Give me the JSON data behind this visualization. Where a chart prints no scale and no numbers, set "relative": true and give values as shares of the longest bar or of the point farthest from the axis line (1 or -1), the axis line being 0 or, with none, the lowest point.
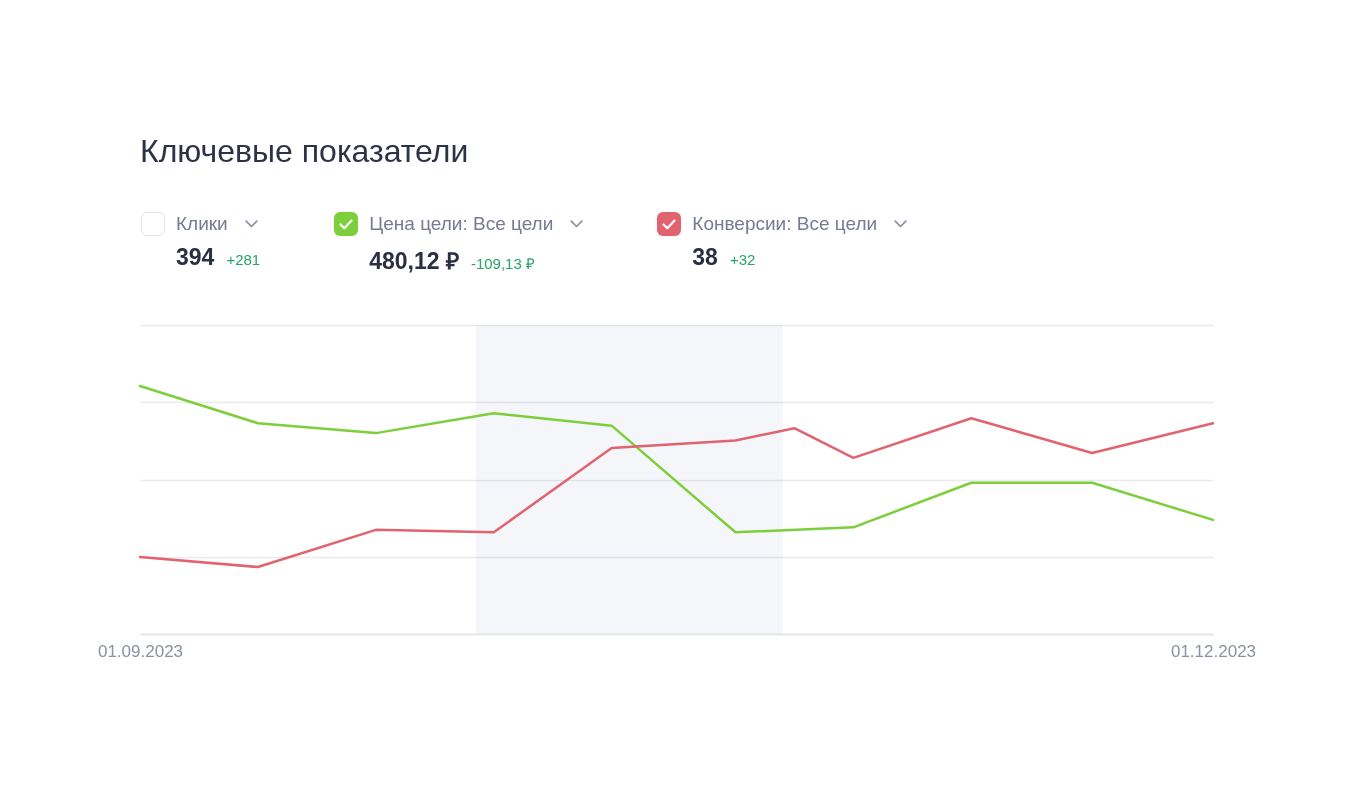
{
  "chart_data": {
    "type": "line",
    "title": "Ключевые показатели",
    "x": [
      "2023-09-01",
      "2023-09-11",
      "2023-09-21",
      "2023-10-01",
      "2023-10-11",
      "2023-10-21T12:00",
      "2023-10-31T12:00",
      "2023-11-10T12:00",
      "2023-11-20T18:00",
      "2023-12-01"
    ],
    "xlim": [
      "2023-09-01",
      "2023-12-01"
    ],
    "xticks": [
      {
        "value": "2023-09-01",
        "label": "01.09.2023"
      },
      {
        "value": "2023-12-01",
        "label": "01.12.2023"
      }
    ],
    "relative": true,
    "grid": "y",
    "legend": "top left",
    "line_style": "solid",
    "series": [
      {
        "name": "Цена цели: Все цели",
        "color": "#7ccf3b",
        "values": [
          1,
          0.85,
          0.81,
          0.89,
          0.84,
          0.41,
          0.43,
          0.61,
          0.61,
          0.46
        ]
      },
      {
        "name": "Конверсии: Все цели",
        "color": "#e0636e",
        "x": [
          "2023-09-01",
          "2023-09-11",
          "2023-09-21",
          "2023-10-01",
          "2023-10-11",
          "2023-10-21T12:00",
          "2023-10-26T12:00",
          "2023-10-31T12:00",
          "2023-11-10T12:00",
          "2023-11-20T18:00",
          "2023-12-01"
        ],
        "values": [
          0.31,
          0.27,
          0.42,
          0.41,
          0.75,
          0.78,
          0.83,
          0.71,
          0.87,
          0.73,
          0.85
        ]
      }
    ],
    "bands": [
      {
        "axis": "x",
        "from": "2023-09-29T12:00",
        "to": "2023-10-25T12:00",
        "color": "#f4f6fa"
      }
    ],
    "annotations": [
      "Клики",
      "394",
      "+281",
      "480,12 ₽",
      "-109,13 ₽",
      "38",
      "+32"
    ]
  }
}
